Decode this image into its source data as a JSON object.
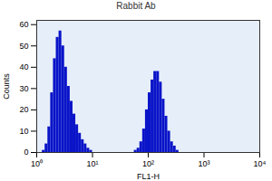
{
  "chart_data": {
    "type": "histogram",
    "title": "Rabbit Ab",
    "x_label": "FL1-H",
    "y_label": "Counts",
    "log": "x",
    "bins": [
      1,
      1.122,
      1.259,
      1.413,
      1.585,
      1.778,
      1.995,
      2.239,
      2.512,
      2.818,
      3.162,
      3.548,
      3.981,
      4.467,
      5.012,
      5.623,
      6.31,
      7.079,
      7.943,
      8.913,
      10,
      11.22,
      12.59,
      14.13,
      15.85,
      17.78,
      19.95,
      22.39,
      25.12,
      28.18,
      31.62,
      35.48,
      39.81,
      44.67,
      50.12,
      56.23,
      63.1,
      70.79,
      79.43,
      89.13,
      100,
      112.2,
      125.9,
      141.3,
      158.5,
      177.8,
      199.5,
      223.9,
      251.2,
      281.8,
      316.2,
      354.8,
      398.1,
      446.7,
      501.2,
      562.3,
      631,
      707.9,
      794.3,
      891.3,
      1000
    ],
    "values": [
      0,
      0,
      1,
      4,
      12,
      28,
      44,
      54,
      57,
      50,
      40,
      31,
      24,
      18,
      13,
      9,
      6,
      4,
      2,
      1,
      0,
      0,
      0,
      0,
      0,
      0,
      0,
      0,
      0,
      0,
      0,
      0,
      0,
      0,
      0,
      1,
      2,
      5,
      11,
      20,
      28,
      34,
      38,
      38,
      33,
      25,
      17,
      10,
      5,
      3,
      1,
      0,
      0,
      0,
      0,
      0,
      0,
      0,
      0,
      0
    ],
    "color": "#0a14c8",
    "xlim": [
      1,
      10000
    ],
    "xticks": [
      {
        "value": 1,
        "label": "10⁰"
      },
      {
        "value": 10,
        "label": "10¹"
      },
      {
        "value": 100,
        "label": "10²"
      },
      {
        "value": 1000,
        "label": "10³"
      },
      {
        "value": 10000,
        "label": "10⁴"
      }
    ],
    "ylim": [
      0,
      62
    ],
    "yticks": [
      0,
      10,
      20,
      30,
      40,
      50,
      60
    ]
  }
}
